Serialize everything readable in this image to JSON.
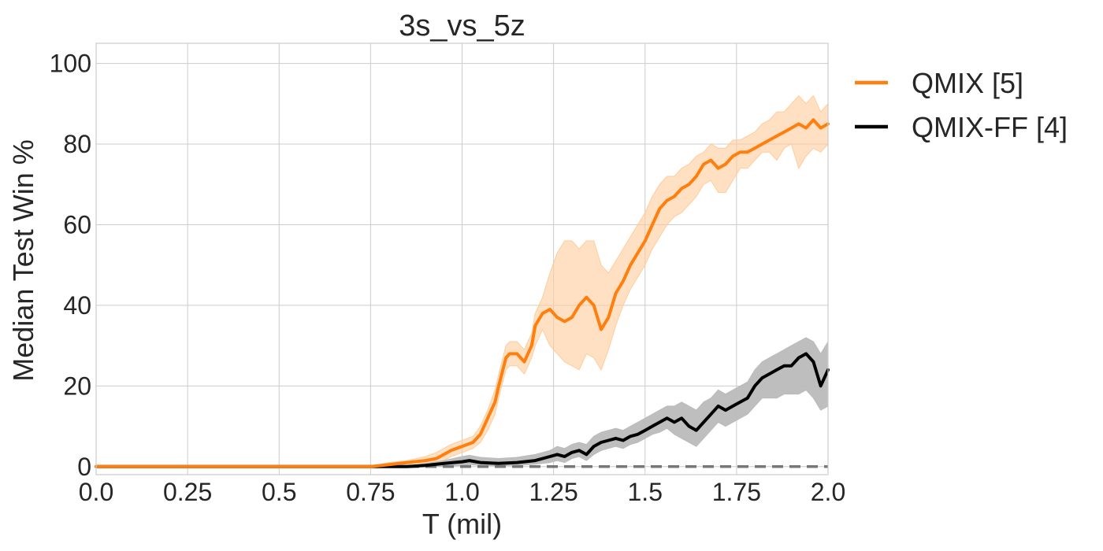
{
  "chart_data": {
    "type": "line",
    "title": "3s_vs_5z",
    "xlabel": "T (mil)",
    "ylabel": "Median Test Win %",
    "xlim": [
      0.0,
      2.0
    ],
    "ylim": [
      -2,
      105
    ],
    "xticks": [
      0.0,
      0.25,
      0.5,
      0.75,
      1.0,
      1.25,
      1.5,
      1.75,
      2.0
    ],
    "xtick_labels": [
      "0.0",
      "0.25",
      "0.5",
      "0.75",
      "1.0",
      "1.25",
      "1.5",
      "1.75",
      "2.0"
    ],
    "yticks": [
      0,
      20,
      40,
      60,
      80,
      100
    ],
    "ytick_labels": [
      "0",
      "20",
      "40",
      "60",
      "80",
      "100"
    ],
    "grid": true,
    "legend": "outside-top-right",
    "baseline": {
      "y": 0,
      "style": "dashed",
      "color": "#777777"
    },
    "series": [
      {
        "name": "QMIX [5]",
        "color": "#ff7f0e",
        "band_color": "#ffcc99",
        "x": [
          0.0,
          0.1,
          0.2,
          0.3,
          0.4,
          0.5,
          0.6,
          0.7,
          0.75,
          0.8,
          0.85,
          0.9,
          0.93,
          0.95,
          0.97,
          1.0,
          1.03,
          1.05,
          1.07,
          1.09,
          1.1,
          1.12,
          1.13,
          1.15,
          1.17,
          1.19,
          1.2,
          1.22,
          1.24,
          1.26,
          1.28,
          1.3,
          1.32,
          1.34,
          1.36,
          1.38,
          1.4,
          1.42,
          1.44,
          1.46,
          1.48,
          1.5,
          1.52,
          1.54,
          1.56,
          1.58,
          1.6,
          1.62,
          1.64,
          1.66,
          1.68,
          1.7,
          1.72,
          1.74,
          1.76,
          1.78,
          1.8,
          1.82,
          1.84,
          1.86,
          1.88,
          1.9,
          1.92,
          1.94,
          1.96,
          1.98,
          2.0
        ],
        "y": [
          0,
          0,
          0,
          0,
          0,
          0,
          0,
          0,
          0,
          0.5,
          1,
          1.5,
          2,
          3,
          4,
          5,
          6,
          8,
          12,
          16,
          20,
          27,
          28,
          28,
          26,
          30,
          35,
          38,
          39,
          37,
          36,
          37,
          40,
          42,
          40,
          34,
          37,
          43,
          46,
          50,
          53,
          56,
          60,
          64,
          66,
          67,
          69,
          70,
          72,
          75,
          76,
          74,
          75,
          77,
          78,
          78,
          79,
          80,
          81,
          82,
          83,
          84,
          85,
          84,
          86,
          84,
          85
        ],
        "lower": [
          0,
          0,
          0,
          0,
          0,
          0,
          0,
          0,
          0,
          0,
          0,
          0.5,
          1,
          1.5,
          2.5,
          3.5,
          4.5,
          6,
          9,
          13,
          17,
          24,
          25,
          25,
          23,
          27,
          30,
          34,
          30,
          28,
          26,
          25,
          24,
          28,
          27,
          24,
          29,
          35,
          40,
          44,
          47,
          50,
          54,
          57,
          60,
          62,
          63,
          65,
          67,
          70,
          71,
          68,
          68,
          71,
          74,
          74,
          76,
          78,
          78,
          76,
          79,
          80,
          74,
          77,
          79,
          78,
          80
        ],
        "upper": [
          0,
          0,
          0,
          0,
          0,
          0,
          0,
          0,
          0,
          1,
          1.5,
          2.5,
          3.5,
          4.5,
          5.5,
          6.5,
          7.5,
          10,
          14,
          19,
          23,
          30,
          31,
          31,
          29,
          33,
          38,
          42,
          48,
          53,
          56,
          56,
          54,
          56,
          56,
          50,
          48,
          51,
          54,
          57,
          60,
          63,
          67,
          70,
          72,
          72,
          74,
          75,
          77,
          78,
          80,
          79,
          79,
          81,
          81,
          82,
          83,
          85,
          86,
          88,
          88,
          90,
          92,
          90,
          92,
          88,
          90
        ]
      },
      {
        "name": "QMIX-FF [4]",
        "color": "#000000",
        "band_color": "#bbbbbb",
        "x": [
          0.0,
          0.1,
          0.2,
          0.3,
          0.4,
          0.5,
          0.6,
          0.7,
          0.75,
          0.8,
          0.85,
          0.9,
          0.95,
          1.0,
          1.02,
          1.05,
          1.1,
          1.15,
          1.2,
          1.24,
          1.26,
          1.28,
          1.3,
          1.32,
          1.34,
          1.36,
          1.38,
          1.4,
          1.42,
          1.44,
          1.46,
          1.48,
          1.5,
          1.52,
          1.54,
          1.56,
          1.58,
          1.6,
          1.62,
          1.64,
          1.66,
          1.68,
          1.7,
          1.72,
          1.74,
          1.76,
          1.78,
          1.8,
          1.82,
          1.84,
          1.86,
          1.88,
          1.9,
          1.92,
          1.94,
          1.96,
          1.98,
          2.0
        ],
        "y": [
          0,
          0,
          0,
          0,
          0,
          0,
          0,
          0,
          0,
          0,
          0,
          0.3,
          0.8,
          1.2,
          1.5,
          1,
          0.8,
          1,
          1.5,
          2.5,
          3,
          2.5,
          3.5,
          4,
          3,
          5,
          6,
          6.5,
          7,
          6.5,
          7.5,
          8,
          9,
          10,
          11,
          12,
          11,
          12,
          10,
          9,
          11,
          13,
          15,
          14,
          15,
          16,
          17,
          20,
          22,
          23,
          24,
          25,
          25,
          27,
          28,
          26,
          20,
          24
        ],
        "lower": [
          0,
          0,
          0,
          0,
          0,
          0,
          0,
          0,
          0,
          0,
          0,
          0,
          0,
          0.3,
          0.5,
          0.3,
          0.2,
          0.3,
          0.6,
          1,
          1.5,
          1,
          2,
          2.5,
          1.5,
          3,
          4,
          4.5,
          5,
          4.5,
          5.5,
          6,
          7,
          8,
          8.5,
          9.5,
          8,
          7,
          6,
          5,
          7,
          9,
          11,
          10,
          11,
          12,
          13,
          15,
          17,
          17,
          17,
          18,
          18,
          18,
          19,
          17,
          14,
          15
        ],
        "upper": [
          0,
          0,
          0,
          0,
          0,
          0,
          0,
          0,
          0,
          0,
          0,
          0.8,
          1.5,
          2.5,
          2.8,
          2.3,
          2,
          2.3,
          3,
          4,
          5,
          4.5,
          5.5,
          6,
          5.5,
          7.5,
          8.5,
          9,
          9.5,
          9,
          10,
          11,
          12,
          13,
          14,
          15,
          15,
          16,
          15,
          14,
          16,
          17,
          19,
          18,
          19,
          20,
          21,
          24,
          26,
          27,
          28,
          29,
          30,
          31,
          32,
          31,
          28,
          31
        ]
      }
    ]
  }
}
